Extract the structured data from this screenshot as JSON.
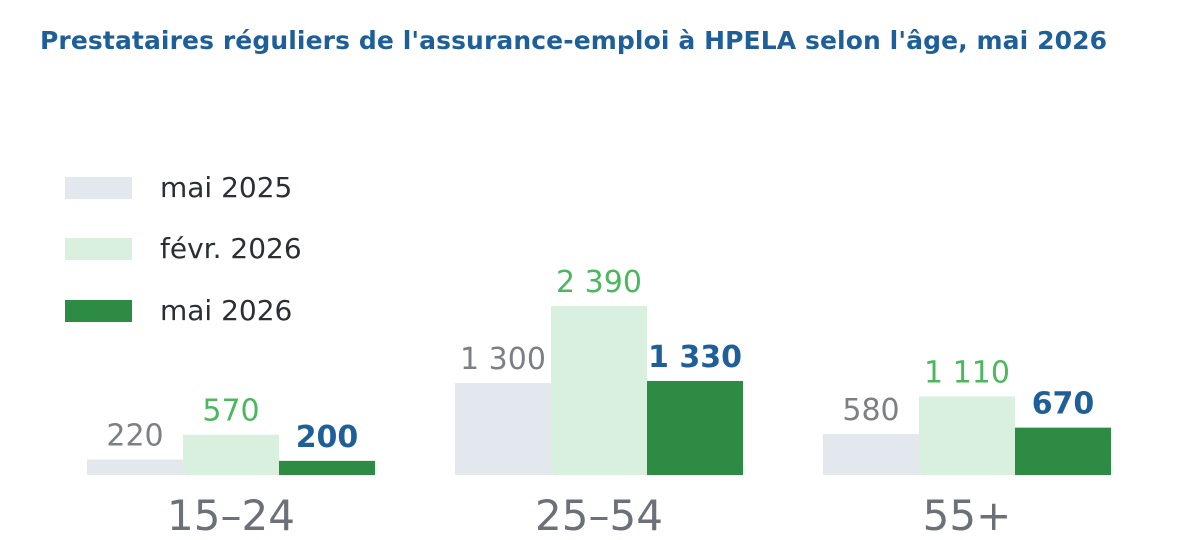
{
  "chart_data": {
    "type": "bar",
    "title": "Prestataires réguliers de l'assurance-emploi à HPELA selon l'âge, mai 2026",
    "categories": [
      "15–24",
      "25–54",
      "55+"
    ],
    "series": [
      {
        "name": "mai 2025",
        "values": [
          220,
          1300,
          580
        ],
        "labels": [
          "220",
          "1 300",
          "580"
        ],
        "color": "#e3e7ee",
        "label_color": "#7d7f86",
        "label_bold": false
      },
      {
        "name": "févr. 2026",
        "values": [
          570,
          2390,
          1110
        ],
        "labels": [
          "570",
          "2 390",
          "1 110"
        ],
        "color": "#d9f0df",
        "label_color": "#4cb85e",
        "label_bold": false
      },
      {
        "name": "mai 2026",
        "values": [
          200,
          1330,
          670
        ],
        "labels": [
          "200",
          "1 330",
          "670"
        ],
        "color": "#2e8b43",
        "label_color": "#1f5f99",
        "label_bold": true
      }
    ],
    "legend_position": "top-left",
    "grid": false,
    "ylim": [
      0,
      2600
    ]
  }
}
